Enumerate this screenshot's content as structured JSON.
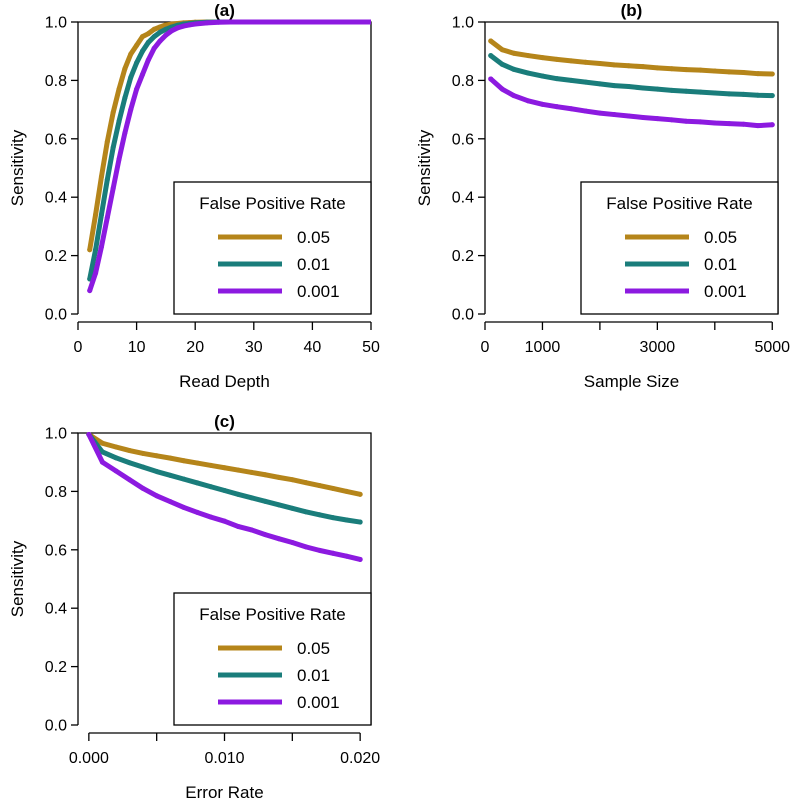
{
  "colors": {
    "fpr_0_05": "#b5851a",
    "fpr_0_01": "#1a7d7b",
    "fpr_0_001": "#8c1ae0"
  },
  "chart_data": [
    {
      "id": "a",
      "type": "line",
      "title": "(a)",
      "xlabel": "Read Depth",
      "ylabel": "Sensitivity",
      "xlim": [
        0,
        50
      ],
      "ylim": [
        0,
        1
      ],
      "xticks": [
        0,
        10,
        20,
        30,
        40,
        50
      ],
      "xtick_labels": [
        "0",
        "10",
        "20",
        "30",
        "40",
        "50"
      ],
      "yticks": [
        0,
        0.2,
        0.4,
        0.6,
        0.8,
        1.0
      ],
      "ytick_labels": [
        "0.0",
        "0.2",
        "0.4",
        "0.6",
        "0.8",
        "1.0"
      ],
      "grid": false,
      "legend": {
        "title": "False Positive Rate",
        "placement": "bottom-right"
      },
      "x": [
        2,
        3,
        4,
        5,
        6,
        7,
        8,
        9,
        10,
        11,
        12,
        13,
        14,
        15,
        16,
        17,
        18,
        19,
        20,
        22,
        24,
        26,
        28,
        30,
        35,
        40,
        45,
        50
      ],
      "series": [
        {
          "name": "0.05",
          "color_key": "fpr_0_05",
          "values": [
            0.22,
            0.34,
            0.47,
            0.59,
            0.69,
            0.77,
            0.84,
            0.89,
            0.92,
            0.95,
            0.96,
            0.975,
            0.983,
            0.99,
            0.993,
            0.995,
            0.997,
            0.998,
            0.999,
            1.0,
            1.0,
            1.0,
            1.0,
            1.0,
            1.0,
            1.0,
            1.0,
            1.0
          ]
        },
        {
          "name": "0.01",
          "color_key": "fpr_0_01",
          "values": [
            0.12,
            0.22,
            0.34,
            0.46,
            0.57,
            0.66,
            0.74,
            0.81,
            0.86,
            0.9,
            0.93,
            0.95,
            0.965,
            0.975,
            0.983,
            0.989,
            0.993,
            0.995,
            0.997,
            0.999,
            1.0,
            1.0,
            1.0,
            1.0,
            1.0,
            1.0,
            1.0,
            1.0
          ]
        },
        {
          "name": "0.001",
          "color_key": "fpr_0_001",
          "values": [
            0.08,
            0.14,
            0.23,
            0.33,
            0.43,
            0.53,
            0.62,
            0.7,
            0.77,
            0.82,
            0.87,
            0.91,
            0.935,
            0.955,
            0.97,
            0.98,
            0.986,
            0.99,
            0.993,
            0.997,
            0.999,
            1.0,
            1.0,
            1.0,
            1.0,
            1.0,
            1.0,
            1.0
          ]
        }
      ]
    },
    {
      "id": "b",
      "type": "line",
      "title": "(b)",
      "xlabel": "Sample Size",
      "ylabel": "Sensitivity",
      "xlim": [
        0,
        5100
      ],
      "ylim": [
        0,
        1
      ],
      "xticks": [
        0,
        1000,
        2000,
        3000,
        4000,
        5000
      ],
      "xtick_labels": [
        "0",
        "1000",
        "",
        "3000",
        "",
        "5000"
      ],
      "yticks": [
        0,
        0.2,
        0.4,
        0.6,
        0.8,
        1.0
      ],
      "ytick_labels": [
        "0.0",
        "0.2",
        "0.4",
        "0.6",
        "0.8",
        "1.0"
      ],
      "grid": false,
      "legend": {
        "title": "False Positive Rate",
        "placement": "bottom-right"
      },
      "x": [
        100,
        300,
        500,
        750,
        1000,
        1250,
        1500,
        1750,
        2000,
        2250,
        2500,
        2750,
        3000,
        3250,
        3500,
        3750,
        4000,
        4250,
        4500,
        4750,
        5000
      ],
      "series": [
        {
          "name": "0.05",
          "color_key": "fpr_0_05",
          "values": [
            0.935,
            0.905,
            0.893,
            0.885,
            0.878,
            0.872,
            0.867,
            0.862,
            0.858,
            0.853,
            0.85,
            0.847,
            0.843,
            0.84,
            0.837,
            0.835,
            0.832,
            0.829,
            0.827,
            0.823,
            0.822
          ]
        },
        {
          "name": "0.01",
          "color_key": "fpr_0_01",
          "values": [
            0.885,
            0.855,
            0.838,
            0.825,
            0.815,
            0.806,
            0.8,
            0.794,
            0.788,
            0.782,
            0.779,
            0.774,
            0.77,
            0.766,
            0.763,
            0.76,
            0.757,
            0.754,
            0.752,
            0.749,
            0.748
          ]
        },
        {
          "name": "0.001",
          "color_key": "fpr_0_001",
          "values": [
            0.805,
            0.77,
            0.748,
            0.73,
            0.718,
            0.71,
            0.703,
            0.695,
            0.688,
            0.683,
            0.678,
            0.673,
            0.669,
            0.665,
            0.66,
            0.658,
            0.654,
            0.652,
            0.65,
            0.645,
            0.648
          ]
        }
      ]
    },
    {
      "id": "c",
      "type": "line",
      "title": "(c)",
      "xlabel": "Error Rate",
      "ylabel": "Sensitivity",
      "xlim": [
        -0.0008,
        0.0208
      ],
      "ylim": [
        0,
        1
      ],
      "xticks": [
        0,
        0.005,
        0.01,
        0.015,
        0.02
      ],
      "xtick_labels": [
        "0.000",
        "",
        "0.010",
        "",
        "0.020"
      ],
      "yticks": [
        0,
        0.2,
        0.4,
        0.6,
        0.8,
        1.0
      ],
      "ytick_labels": [
        "0.0",
        "0.2",
        "0.4",
        "0.6",
        "0.8",
        "1.0"
      ],
      "grid": false,
      "legend": {
        "title": "False Positive Rate",
        "placement": "bottom-right"
      },
      "x": [
        0,
        0.001,
        0.002,
        0.003,
        0.004,
        0.005,
        0.006,
        0.007,
        0.008,
        0.009,
        0.01,
        0.011,
        0.012,
        0.013,
        0.014,
        0.015,
        0.016,
        0.017,
        0.018,
        0.019,
        0.02
      ],
      "series": [
        {
          "name": "0.05",
          "color_key": "fpr_0_05",
          "values": [
            0.995,
            0.965,
            0.952,
            0.94,
            0.93,
            0.922,
            0.914,
            0.905,
            0.897,
            0.889,
            0.881,
            0.873,
            0.865,
            0.857,
            0.848,
            0.84,
            0.83,
            0.82,
            0.81,
            0.8,
            0.79
          ]
        },
        {
          "name": "0.01",
          "color_key": "fpr_0_01",
          "values": [
            0.995,
            0.935,
            0.915,
            0.898,
            0.883,
            0.868,
            0.855,
            0.842,
            0.829,
            0.816,
            0.803,
            0.79,
            0.778,
            0.766,
            0.754,
            0.742,
            0.73,
            0.72,
            0.71,
            0.702,
            0.695
          ]
        },
        {
          "name": "0.001",
          "color_key": "fpr_0_001",
          "values": [
            0.995,
            0.9,
            0.87,
            0.84,
            0.81,
            0.785,
            0.765,
            0.745,
            0.728,
            0.712,
            0.698,
            0.68,
            0.668,
            0.652,
            0.638,
            0.625,
            0.61,
            0.598,
            0.588,
            0.578,
            0.567
          ]
        }
      ]
    }
  ]
}
